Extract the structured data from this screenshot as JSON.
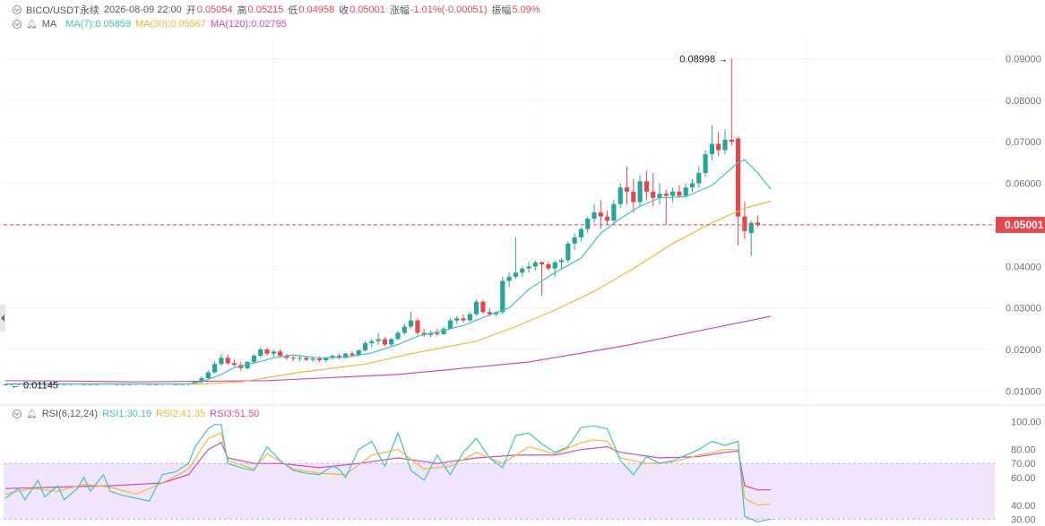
{
  "header": {
    "symbol": "BICO/USDT永续",
    "datetime": "2026-08-09 22:00",
    "open_label": "开",
    "open": "0.05054",
    "high_label": "高",
    "high": "0.05215",
    "low_label": "低",
    "low": "0.04958",
    "close_label": "收",
    "close": "0.05001",
    "change_label": "涨幅",
    "change": "-1.01%(-0.00051)",
    "amplitude_label": "振幅",
    "amplitude": "5.09%"
  },
  "ma_legend": {
    "label": "MA",
    "ma7": "MA(7):0.05859",
    "ma30": "MA(30):0.05567",
    "ma120": "MA(120):0.02795"
  },
  "rsi_legend": {
    "label": "RSI(6,12,24)",
    "rsi1": "RSI1:30.19",
    "rsi2": "RSI2:41.35",
    "rsi3": "RSI3:51.50"
  },
  "colors": {
    "up": "#26a69a",
    "down": "#e6474f",
    "ma7": "#3cc6c0",
    "ma30": "#f5b82e",
    "ma120": "#d147c8",
    "rsi1": "#3cc6c0",
    "rsi2": "#f5b82e",
    "rsi3": "#d147c8",
    "rsi_band": "#f1e5fb"
  },
  "chart_data": {
    "type": "candlestick",
    "price_axis": {
      "ticks": [
        "0.09000",
        "0.08000",
        "0.07000",
        "0.06000",
        "0.05000",
        "0.04000",
        "0.03000",
        "0.02000",
        "0.01000"
      ],
      "range": [
        0.0075,
        0.0955
      ]
    },
    "current_price_label": "0.05001",
    "high_annotation": "0.08998",
    "low_annotation": "0.01145",
    "rsi_axis": {
      "ticks": [
        "100.00",
        "80.00",
        "70.00",
        "60.00",
        "40.00",
        "30.00"
      ],
      "range": [
        27,
        103
      ],
      "band": [
        30,
        70
      ]
    },
    "ohlc": [
      [
        0.0116,
        0.0118,
        0.0114,
        0.0116
      ],
      [
        0.0116,
        0.0118,
        0.0114,
        0.0117
      ],
      [
        0.0117,
        0.0118,
        0.0114,
        0.0115
      ],
      [
        0.0115,
        0.0118,
        0.0114,
        0.0117
      ],
      [
        0.0117,
        0.0118,
        0.0114,
        0.0116
      ],
      [
        0.0116,
        0.0118,
        0.0114,
        0.0117
      ],
      [
        0.0117,
        0.0119,
        0.0114,
        0.0116
      ],
      [
        0.0116,
        0.0118,
        0.0114,
        0.0115
      ],
      [
        0.0115,
        0.0118,
        0.0114,
        0.0117
      ],
      [
        0.0117,
        0.0118,
        0.0114,
        0.0116
      ],
      [
        0.0116,
        0.0119,
        0.0114,
        0.0118
      ],
      [
        0.0118,
        0.0119,
        0.0115,
        0.0116
      ],
      [
        0.0116,
        0.0118,
        0.0114,
        0.0117
      ],
      [
        0.0117,
        0.0118,
        0.0114,
        0.0116
      ],
      [
        0.0116,
        0.0118,
        0.0114,
        0.0117
      ],
      [
        0.0117,
        0.0119,
        0.0115,
        0.0118
      ],
      [
        0.0118,
        0.0119,
        0.0115,
        0.0116
      ],
      [
        0.0116,
        0.0118,
        0.0114,
        0.0117
      ],
      [
        0.0117,
        0.0118,
        0.0114,
        0.0115
      ],
      [
        0.0115,
        0.0118,
        0.0114,
        0.0117
      ],
      [
        0.0117,
        0.0119,
        0.0114,
        0.0118
      ],
      [
        0.0118,
        0.0119,
        0.0115,
        0.0116
      ],
      [
        0.0116,
        0.0118,
        0.0114,
        0.0117
      ],
      [
        0.0117,
        0.0118,
        0.0114,
        0.0116
      ],
      [
        0.0116,
        0.0119,
        0.0114,
        0.0118
      ],
      [
        0.0118,
        0.0119,
        0.0115,
        0.0116
      ],
      [
        0.0116,
        0.0118,
        0.0114,
        0.0117
      ],
      [
        0.0117,
        0.0118,
        0.0114,
        0.0116
      ],
      [
        0.0116,
        0.0119,
        0.0114,
        0.0118
      ],
      [
        0.0118,
        0.0125,
        0.0115,
        0.0123
      ],
      [
        0.0123,
        0.0135,
        0.0119,
        0.0131
      ],
      [
        0.0131,
        0.015,
        0.0128,
        0.0145
      ],
      [
        0.0145,
        0.0172,
        0.0142,
        0.0165
      ],
      [
        0.0165,
        0.019,
        0.016,
        0.018
      ],
      [
        0.018,
        0.0188,
        0.0163,
        0.0167
      ],
      [
        0.0167,
        0.0175,
        0.016,
        0.0163
      ],
      [
        0.0163,
        0.017,
        0.015,
        0.0155
      ],
      [
        0.0155,
        0.0172,
        0.0152,
        0.017
      ],
      [
        0.017,
        0.0188,
        0.0166,
        0.0185
      ],
      [
        0.0185,
        0.0205,
        0.018,
        0.02
      ],
      [
        0.02,
        0.0205,
        0.0185,
        0.019
      ],
      [
        0.019,
        0.02,
        0.0183,
        0.0195
      ],
      [
        0.0195,
        0.02,
        0.018,
        0.0185
      ],
      [
        0.0185,
        0.019,
        0.0175,
        0.018
      ],
      [
        0.018,
        0.0188,
        0.0172,
        0.0178
      ],
      [
        0.0178,
        0.0185,
        0.0172,
        0.018
      ],
      [
        0.018,
        0.0185,
        0.0172,
        0.0175
      ],
      [
        0.0175,
        0.0182,
        0.017,
        0.0178
      ],
      [
        0.0178,
        0.0184,
        0.017,
        0.0174
      ],
      [
        0.0174,
        0.0182,
        0.017,
        0.018
      ],
      [
        0.018,
        0.0188,
        0.0175,
        0.0185
      ],
      [
        0.0185,
        0.019,
        0.0176,
        0.018
      ],
      [
        0.018,
        0.0192,
        0.0178,
        0.019
      ],
      [
        0.019,
        0.0196,
        0.0182,
        0.0186
      ],
      [
        0.0186,
        0.02,
        0.0184,
        0.0198
      ],
      [
        0.0198,
        0.022,
        0.0195,
        0.0215
      ],
      [
        0.0215,
        0.0225,
        0.0205,
        0.022
      ],
      [
        0.022,
        0.024,
        0.021,
        0.0225
      ],
      [
        0.0225,
        0.023,
        0.0208,
        0.0212
      ],
      [
        0.0212,
        0.0228,
        0.0208,
        0.0225
      ],
      [
        0.0225,
        0.0245,
        0.0222,
        0.024
      ],
      [
        0.024,
        0.0262,
        0.0235,
        0.0255
      ],
      [
        0.0255,
        0.029,
        0.025,
        0.027
      ],
      [
        0.027,
        0.0275,
        0.0235,
        0.024
      ],
      [
        0.024,
        0.025,
        0.023,
        0.0235
      ],
      [
        0.0235,
        0.0245,
        0.023,
        0.024
      ],
      [
        0.024,
        0.025,
        0.0232,
        0.0237
      ],
      [
        0.0237,
        0.0255,
        0.0235,
        0.025
      ],
      [
        0.025,
        0.0275,
        0.0248,
        0.027
      ],
      [
        0.027,
        0.028,
        0.0262,
        0.0275
      ],
      [
        0.0275,
        0.0285,
        0.0265,
        0.027
      ],
      [
        0.027,
        0.029,
        0.0268,
        0.0285
      ],
      [
        0.0285,
        0.032,
        0.028,
        0.0315
      ],
      [
        0.0315,
        0.032,
        0.0285,
        0.029
      ],
      [
        0.029,
        0.03,
        0.028,
        0.0285
      ],
      [
        0.0285,
        0.0292,
        0.028,
        0.029
      ],
      [
        0.029,
        0.0375,
        0.0285,
        0.0365
      ],
      [
        0.0365,
        0.0385,
        0.035,
        0.0375
      ],
      [
        0.0375,
        0.047,
        0.037,
        0.0385
      ],
      [
        0.0385,
        0.04,
        0.0375,
        0.0395
      ],
      [
        0.0395,
        0.041,
        0.0385,
        0.04
      ],
      [
        0.04,
        0.0415,
        0.039,
        0.041
      ],
      [
        0.041,
        0.0412,
        0.033,
        0.0405
      ],
      [
        0.0405,
        0.0412,
        0.039,
        0.0395
      ],
      [
        0.0395,
        0.0415,
        0.0375,
        0.041
      ],
      [
        0.041,
        0.042,
        0.0395,
        0.0415
      ],
      [
        0.0415,
        0.046,
        0.041,
        0.0455
      ],
      [
        0.0455,
        0.048,
        0.044,
        0.047
      ],
      [
        0.047,
        0.0495,
        0.046,
        0.049
      ],
      [
        0.049,
        0.052,
        0.048,
        0.0515
      ],
      [
        0.0515,
        0.055,
        0.0505,
        0.053
      ],
      [
        0.053,
        0.056,
        0.049,
        0.052
      ],
      [
        0.052,
        0.0535,
        0.05,
        0.051
      ],
      [
        0.051,
        0.056,
        0.0505,
        0.055
      ],
      [
        0.055,
        0.06,
        0.054,
        0.059
      ],
      [
        0.059,
        0.064,
        0.055,
        0.058
      ],
      [
        0.058,
        0.061,
        0.053,
        0.0555
      ],
      [
        0.0555,
        0.062,
        0.0545,
        0.0605
      ],
      [
        0.0605,
        0.063,
        0.056,
        0.058
      ],
      [
        0.058,
        0.0625,
        0.0545,
        0.0565
      ],
      [
        0.0565,
        0.06,
        0.055,
        0.0575
      ],
      [
        0.0575,
        0.0585,
        0.05,
        0.057
      ],
      [
        0.057,
        0.059,
        0.0555,
        0.058
      ],
      [
        0.058,
        0.0595,
        0.0565,
        0.057
      ],
      [
        0.057,
        0.06,
        0.0565,
        0.059
      ],
      [
        0.059,
        0.061,
        0.058,
        0.06
      ],
      [
        0.06,
        0.064,
        0.059,
        0.0625
      ],
      [
        0.0625,
        0.068,
        0.0615,
        0.067
      ],
      [
        0.067,
        0.074,
        0.0655,
        0.0695
      ],
      [
        0.0695,
        0.0725,
        0.0665,
        0.068
      ],
      [
        0.068,
        0.073,
        0.067,
        0.0705
      ],
      [
        0.0705,
        0.08998,
        0.069,
        0.07
      ],
      [
        0.0708,
        0.0712,
        0.045,
        0.052
      ],
      [
        0.052,
        0.0555,
        0.0465,
        0.0485
      ],
      [
        0.048,
        0.051,
        0.0425,
        0.0505
      ],
      [
        0.05054,
        0.05215,
        0.04958,
        0.05001
      ]
    ],
    "ma7": [
      [
        0,
        0.0117
      ],
      [
        28,
        0.0117
      ],
      [
        30,
        0.0122
      ],
      [
        33,
        0.014
      ],
      [
        35,
        0.0157
      ],
      [
        38,
        0.0167
      ],
      [
        41,
        0.018
      ],
      [
        44,
        0.0187
      ],
      [
        48,
        0.018
      ],
      [
        52,
        0.0181
      ],
      [
        56,
        0.0192
      ],
      [
        60,
        0.0212
      ],
      [
        63,
        0.0232
      ],
      [
        66,
        0.0242
      ],
      [
        70,
        0.0258
      ],
      [
        74,
        0.0283
      ],
      [
        77,
        0.03
      ],
      [
        80,
        0.0345
      ],
      [
        84,
        0.0385
      ],
      [
        88,
        0.042
      ],
      [
        91,
        0.048
      ],
      [
        94,
        0.0515
      ],
      [
        97,
        0.0545
      ],
      [
        100,
        0.0565
      ],
      [
        104,
        0.0568
      ],
      [
        108,
        0.0595
      ],
      [
        112,
        0.065
      ],
      [
        113,
        0.0657
      ],
      [
        115,
        0.0625
      ],
      [
        117,
        0.0586
      ]
    ],
    "ma30": [
      [
        0,
        0.0118
      ],
      [
        30,
        0.0117
      ],
      [
        36,
        0.0122
      ],
      [
        45,
        0.0145
      ],
      [
        55,
        0.0165
      ],
      [
        62,
        0.019
      ],
      [
        72,
        0.022
      ],
      [
        78,
        0.0255
      ],
      [
        84,
        0.0295
      ],
      [
        90,
        0.034
      ],
      [
        96,
        0.0395
      ],
      [
        102,
        0.0455
      ],
      [
        108,
        0.0505
      ],
      [
        113,
        0.054
      ],
      [
        117,
        0.0557
      ]
    ],
    "ma120": [
      [
        0,
        0.0125
      ],
      [
        10,
        0.0124
      ],
      [
        20,
        0.0122
      ],
      [
        40,
        0.0125
      ],
      [
        60,
        0.014
      ],
      [
        80,
        0.017
      ],
      [
        95,
        0.021
      ],
      [
        106,
        0.0245
      ],
      [
        117,
        0.028
      ]
    ],
    "rsi1": [
      [
        0,
        45
      ],
      [
        2,
        52
      ],
      [
        3,
        44
      ],
      [
        5,
        58
      ],
      [
        6,
        46
      ],
      [
        8,
        54
      ],
      [
        9,
        44
      ],
      [
        11,
        52
      ],
      [
        12,
        60
      ],
      [
        13,
        50
      ],
      [
        15,
        62
      ],
      [
        16,
        50
      ],
      [
        18,
        47
      ],
      [
        20,
        45
      ],
      [
        22,
        43
      ],
      [
        24,
        62
      ],
      [
        26,
        64
      ],
      [
        28,
        70
      ],
      [
        29,
        82
      ],
      [
        31,
        95
      ],
      [
        32,
        98
      ],
      [
        33,
        98
      ],
      [
        34,
        70
      ],
      [
        36,
        67
      ],
      [
        38,
        65
      ],
      [
        40,
        82
      ],
      [
        42,
        72
      ],
      [
        44,
        65
      ],
      [
        46,
        63
      ],
      [
        48,
        62
      ],
      [
        50,
        68
      ],
      [
        51,
        66
      ],
      [
        52,
        60
      ],
      [
        54,
        80
      ],
      [
        56,
        86
      ],
      [
        58,
        68
      ],
      [
        60,
        92
      ],
      [
        62,
        65
      ],
      [
        64,
        58
      ],
      [
        66,
        76
      ],
      [
        68,
        62
      ],
      [
        70,
        78
      ],
      [
        72,
        88
      ],
      [
        74,
        74
      ],
      [
        76,
        67
      ],
      [
        78,
        90
      ],
      [
        80,
        92
      ],
      [
        82,
        84
      ],
      [
        84,
        78
      ],
      [
        86,
        82
      ],
      [
        88,
        96
      ],
      [
        90,
        97
      ],
      [
        92,
        95
      ],
      [
        94,
        72
      ],
      [
        96,
        62
      ],
      [
        98,
        75
      ],
      [
        100,
        70
      ],
      [
        102,
        72
      ],
      [
        104,
        76
      ],
      [
        106,
        80
      ],
      [
        108,
        86
      ],
      [
        110,
        83
      ],
      [
        112,
        86
      ],
      [
        113,
        32
      ],
      [
        115,
        28
      ],
      [
        117,
        30
      ]
    ],
    "rsi2": [
      [
        0,
        48
      ],
      [
        4,
        52
      ],
      [
        8,
        50
      ],
      [
        12,
        55
      ],
      [
        16,
        53
      ],
      [
        20,
        48
      ],
      [
        24,
        56
      ],
      [
        28,
        66
      ],
      [
        31,
        88
      ],
      [
        33,
        92
      ],
      [
        34,
        72
      ],
      [
        38,
        66
      ],
      [
        40,
        77
      ],
      [
        44,
        66
      ],
      [
        48,
        63
      ],
      [
        52,
        62
      ],
      [
        56,
        76
      ],
      [
        60,
        80
      ],
      [
        64,
        66
      ],
      [
        68,
        68
      ],
      [
        72,
        78
      ],
      [
        76,
        70
      ],
      [
        80,
        82
      ],
      [
        84,
        77
      ],
      [
        88,
        85
      ],
      [
        90,
        87
      ],
      [
        92,
        86
      ],
      [
        94,
        74
      ],
      [
        98,
        70
      ],
      [
        102,
        71
      ],
      [
        106,
        76
      ],
      [
        110,
        80
      ],
      [
        112,
        80
      ],
      [
        113,
        45
      ],
      [
        115,
        40
      ],
      [
        117,
        41
      ]
    ],
    "rsi3": [
      [
        0,
        52
      ],
      [
        8,
        53
      ],
      [
        16,
        54
      ],
      [
        24,
        56
      ],
      [
        28,
        62
      ],
      [
        31,
        80
      ],
      [
        33,
        85
      ],
      [
        34,
        74
      ],
      [
        38,
        70
      ],
      [
        42,
        70
      ],
      [
        48,
        67
      ],
      [
        54,
        70
      ],
      [
        60,
        74
      ],
      [
        66,
        70
      ],
      [
        72,
        74
      ],
      [
        78,
        76
      ],
      [
        84,
        76
      ],
      [
        88,
        80
      ],
      [
        92,
        82
      ],
      [
        94,
        78
      ],
      [
        100,
        74
      ],
      [
        106,
        75
      ],
      [
        110,
        78
      ],
      [
        112,
        79
      ],
      [
        113,
        54
      ],
      [
        115,
        51
      ],
      [
        117,
        51
      ]
    ]
  }
}
